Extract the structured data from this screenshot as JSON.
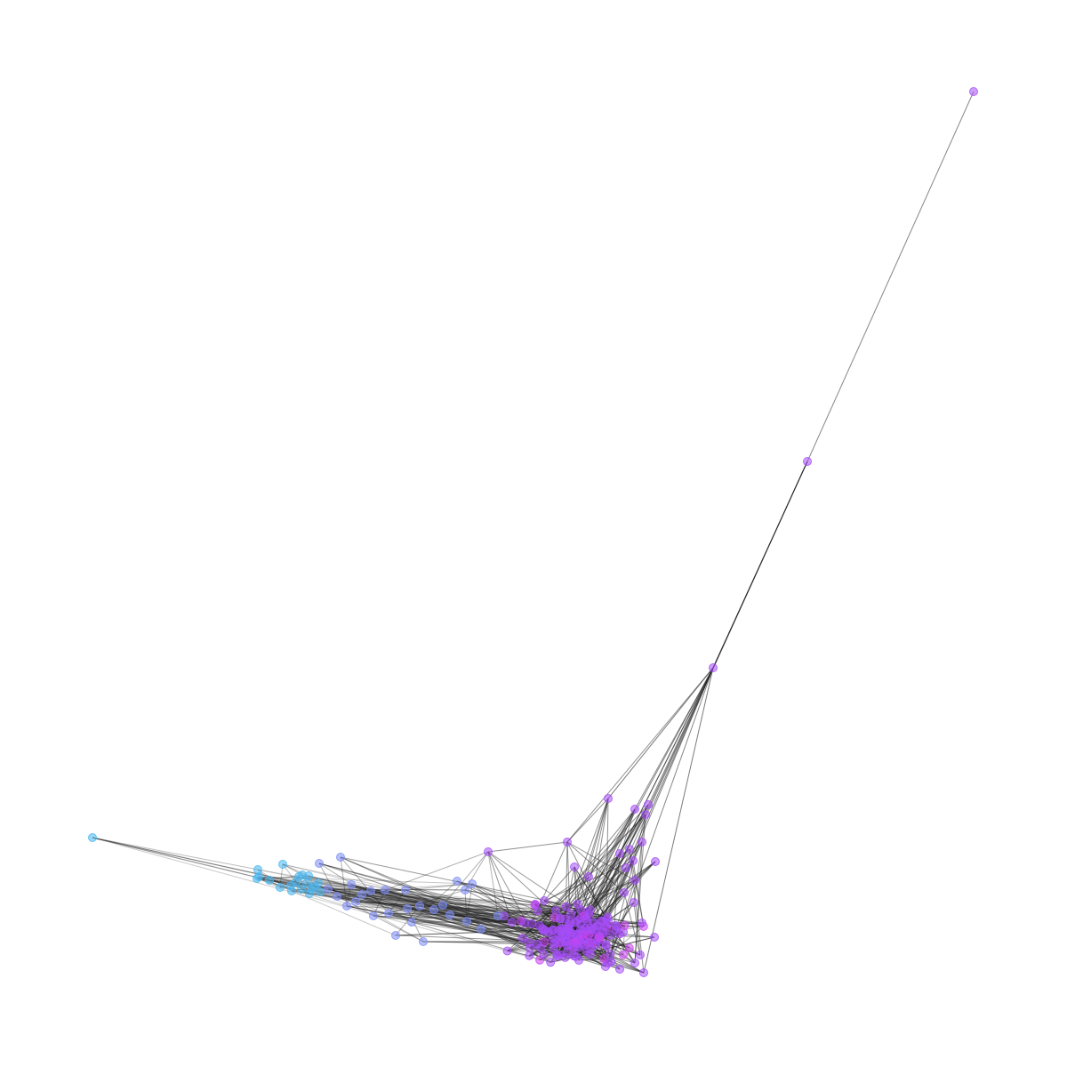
{
  "graph": {
    "type": "network",
    "node_colors": {
      "cyan": "#47b6f0",
      "blue": "#7e8df6",
      "violet": "#a54ef8",
      "magenta": "#cc44f4"
    },
    "edge_color": "#222222"
  }
}
